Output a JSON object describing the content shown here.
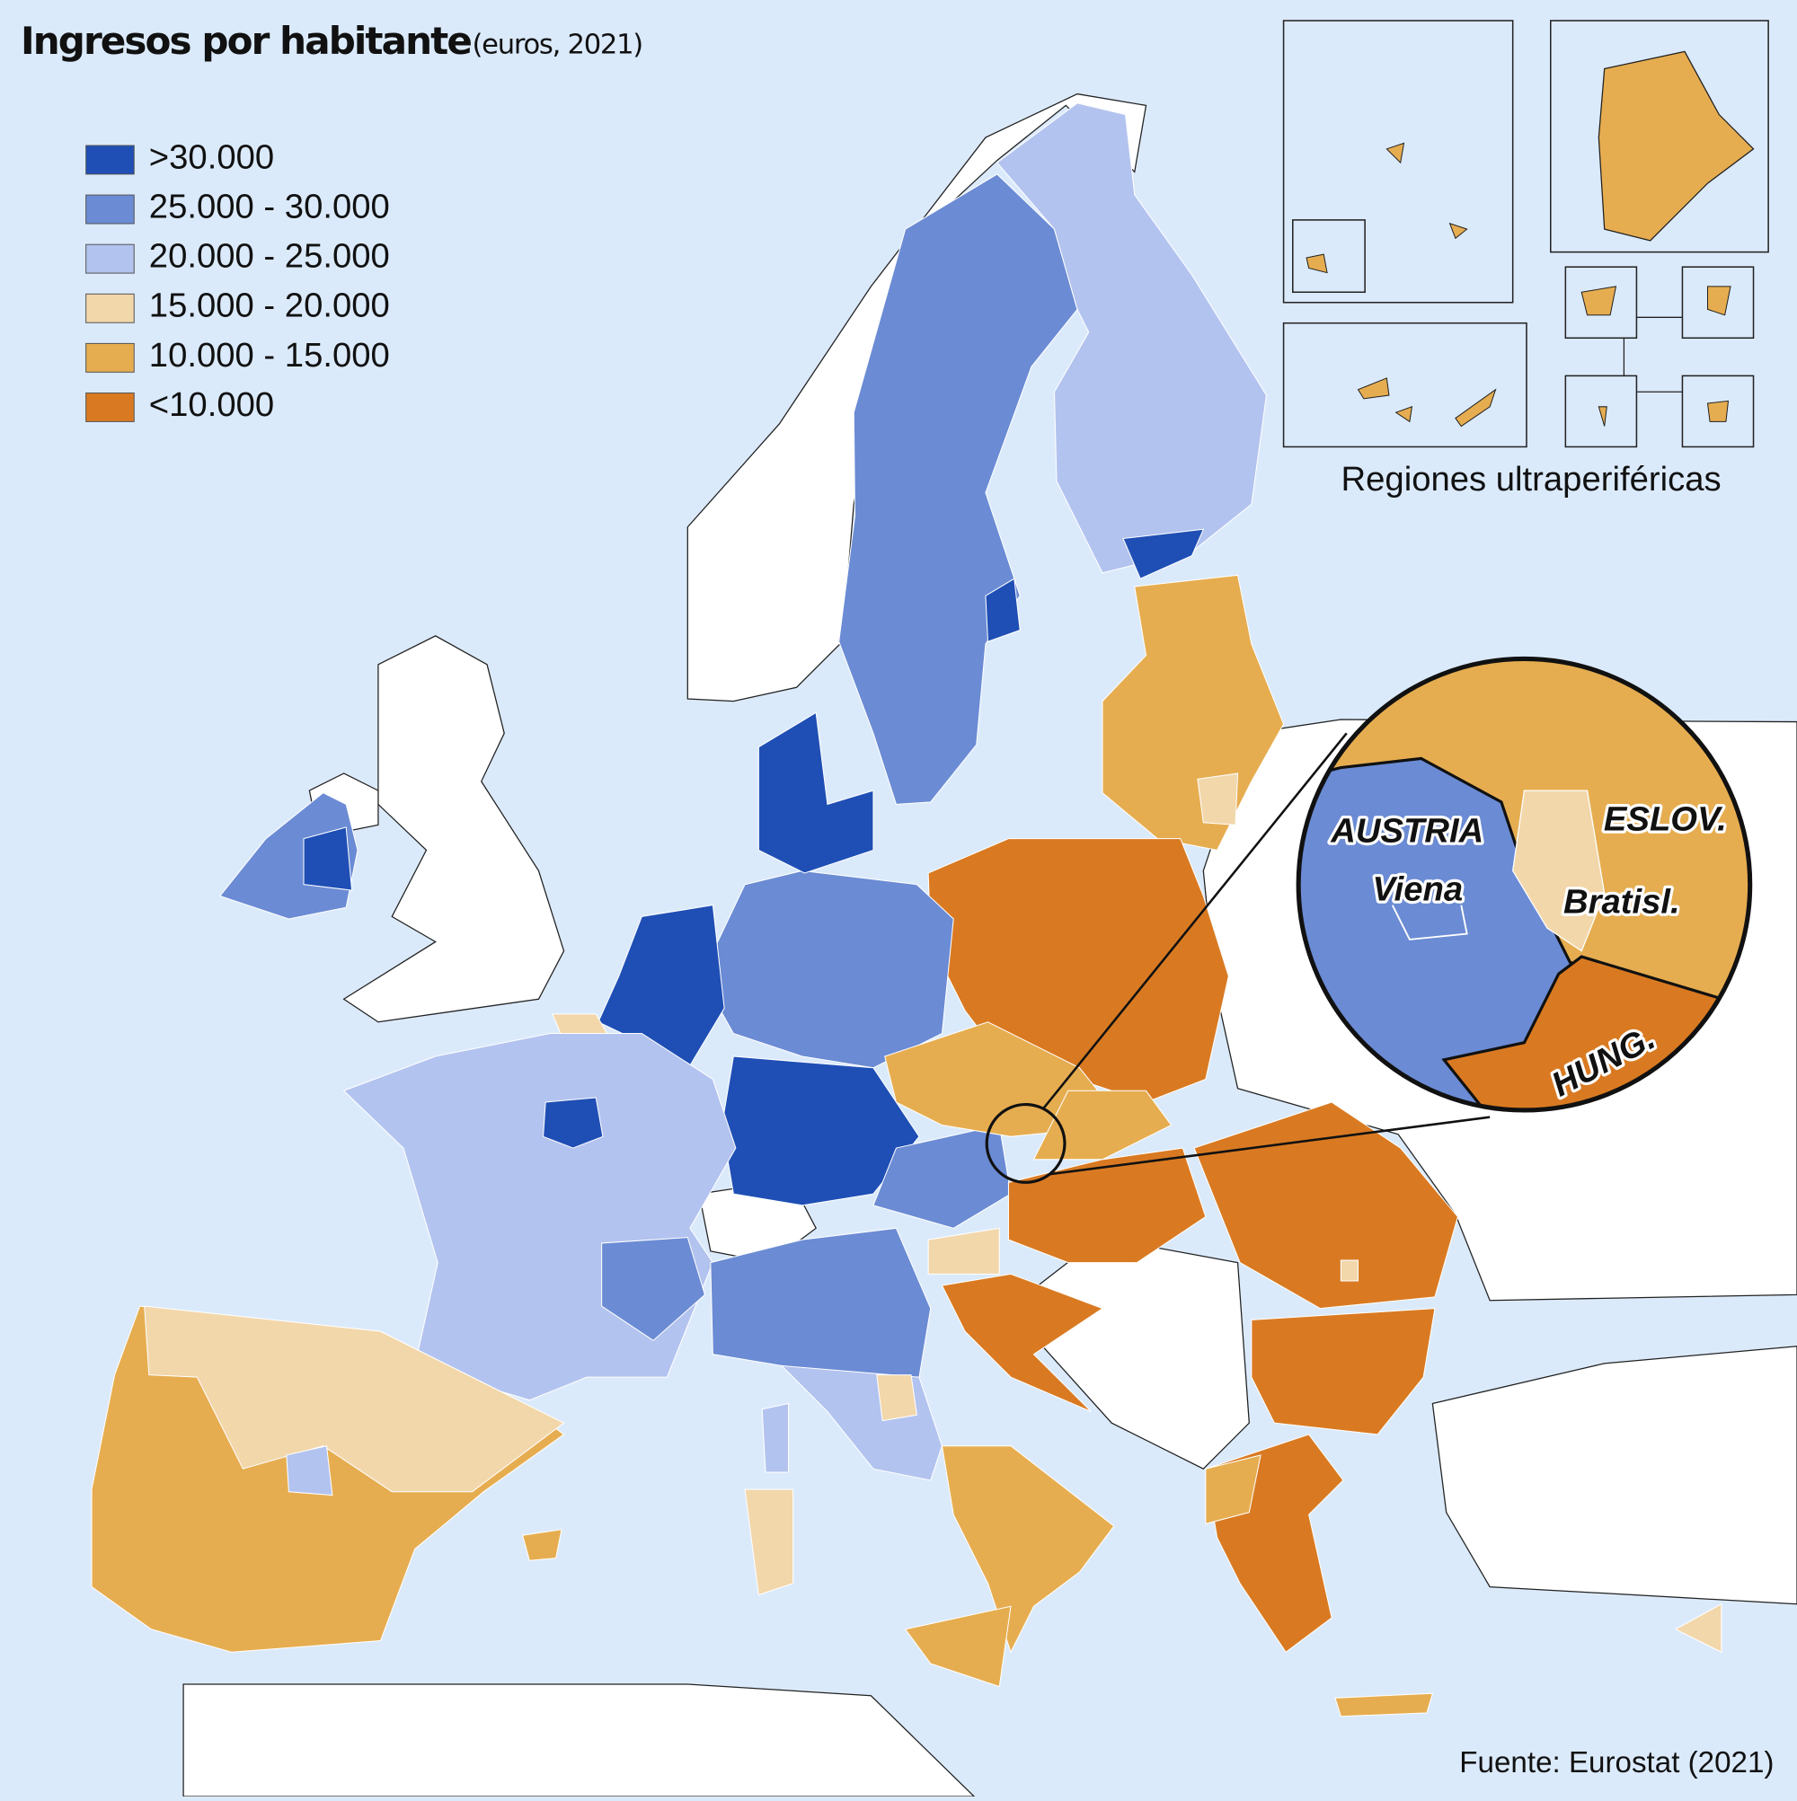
{
  "header": {
    "title": "Ingresos por habitante",
    "subtitle": "(euros, 2021)"
  },
  "legend": [
    {
      "label": ">30.000",
      "color": "#1f4fb5"
    },
    {
      "label": "25.000 - 30.000",
      "color": "#6b8bd4"
    },
    {
      "label": "20.000 - 25.000",
      "color": "#b3c3ef"
    },
    {
      "label": "15.000 - 20.000",
      "color": "#f2d7ab"
    },
    {
      "label": "10.000 - 15.000",
      "color": "#e6ad50"
    },
    {
      "label": "<10.000",
      "color": "#d97a22"
    }
  ],
  "insets": {
    "label": "Regiones ultraperiféricas"
  },
  "zoom": {
    "country": "AUSTRIA",
    "capital": "Viena",
    "neighbor": "ESLOV.",
    "neighbor_capital": "Bratisl.",
    "south": "HUNG."
  },
  "source": "Fuente: Eurostat (2021)"
}
